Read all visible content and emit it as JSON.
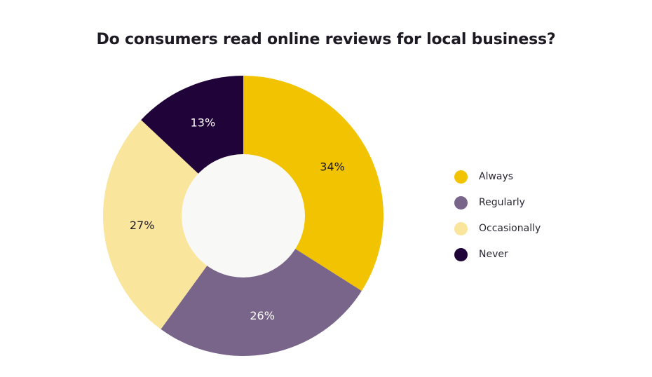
{
  "chart_data": {
    "type": "pie",
    "title": "Do consumers read online reviews for local business?",
    "categories": [
      "Always",
      "Regularly",
      "Occasionally",
      "Never"
    ],
    "values": [
      34,
      26,
      27,
      13
    ],
    "labels": [
      "34%",
      "26%",
      "27%",
      "13%"
    ],
    "colors": [
      "#f2c300",
      "#786589",
      "#fae59c",
      "#200439"
    ],
    "label_colors": [
      "#1d1a24",
      "#ffffff",
      "#1d1a24",
      "#ffffff"
    ],
    "center_color": "#f8f8f6",
    "legend_position": "right",
    "donut": true
  }
}
